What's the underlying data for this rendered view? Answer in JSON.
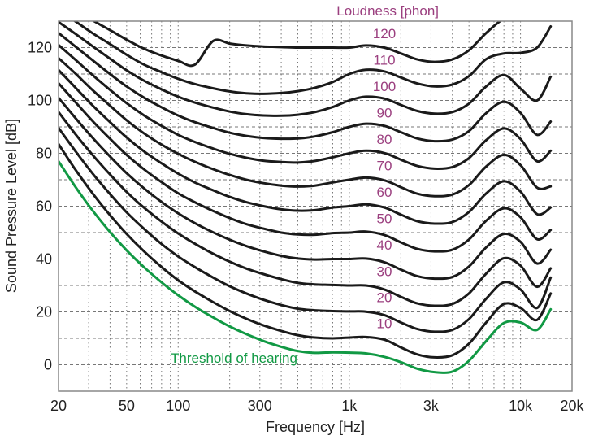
{
  "chart_data": {
    "type": "line",
    "title": "Loudness [phon]",
    "xlabel": "Frequency [Hz]",
    "ylabel": "Sound Pressure Level [dB]",
    "xscale": "log",
    "xlim": [
      20,
      20000
    ],
    "ylim": [
      -10,
      130
    ],
    "grid": true,
    "x_ticks": [
      {
        "value": 20,
        "label": "20"
      },
      {
        "value": 50,
        "label": "50"
      },
      {
        "value": 100,
        "label": "100"
      },
      {
        "value": 300,
        "label": "300"
      },
      {
        "value": 1000,
        "label": "1k"
      },
      {
        "value": 3000,
        "label": "3k"
      },
      {
        "value": 10000,
        "label": "10k"
      },
      {
        "value": 20000,
        "label": "20k"
      }
    ],
    "x_minor_grid": [
      30,
      40,
      50,
      60,
      70,
      80,
      90,
      100,
      200,
      300,
      400,
      500,
      600,
      700,
      800,
      900,
      1000,
      2000,
      3000,
      4000,
      5000,
      6000,
      7000,
      8000,
      9000,
      10000
    ],
    "y_ticks": [
      {
        "value": 0,
        "label": "0"
      },
      {
        "value": 20,
        "label": "20"
      },
      {
        "value": 40,
        "label": "40"
      },
      {
        "value": 60,
        "label": "60"
      },
      {
        "value": 80,
        "label": "80"
      },
      {
        "value": 100,
        "label": "100"
      },
      {
        "value": 120,
        "label": "120"
      }
    ],
    "y_grid": [
      0,
      10,
      20,
      30,
      40,
      50,
      60,
      70,
      80,
      90,
      100,
      110,
      120
    ],
    "x": [
      20,
      25,
      31.5,
      40,
      50,
      63,
      80,
      100,
      125,
      160,
      200,
      250,
      315,
      400,
      500,
      630,
      800,
      1000,
      1250,
      1600,
      2000,
      2500,
      3150,
      4000,
      5000,
      6300,
      8000,
      10000,
      12500,
      15000
    ],
    "series": [
      {
        "name": "Threshold of hearing",
        "label": "Threshold of hearing",
        "color": "#119944",
        "values": [
          77,
          67.5,
          58.5,
          50.2,
          43.3,
          37,
          31.2,
          26.3,
          22,
          17.9,
          14.5,
          11.6,
          9,
          6.8,
          5.2,
          4.5,
          4.7,
          4.6,
          4.3,
          3,
          1,
          -1.5,
          -2.8,
          -2.6,
          1.5,
          9,
          15.8,
          16,
          13.2,
          21
        ]
      },
      {
        "name": "10 phon",
        "label": "10",
        "color": "#1a1a1a",
        "values": [
          83.5,
          74,
          65,
          56.6,
          49.5,
          43,
          37,
          32,
          27.8,
          23.7,
          20.3,
          17.4,
          14.9,
          12.8,
          11.2,
          10.3,
          10,
          10.3,
          10.5,
          9.5,
          6.6,
          3.9,
          2.8,
          3.6,
          8,
          16,
          23,
          21.5,
          17,
          27
        ]
      },
      {
        "name": "20 phon",
        "label": "20",
        "color": "#1a1a1a",
        "values": [
          89.6,
          81,
          72.5,
          64.6,
          57.7,
          51.5,
          45.7,
          41,
          37,
          33,
          29.7,
          27,
          24.6,
          22.6,
          21.2,
          20.6,
          20.3,
          20.2,
          20.1,
          18.8,
          16,
          13.5,
          12.5,
          13.2,
          17.3,
          25,
          31.2,
          28.5,
          21.5,
          33
        ]
      },
      {
        "name": "30 phon",
        "label": "30",
        "color": "#1a1a1a",
        "values": [
          95.6,
          87.4,
          79.5,
          72,
          65.4,
          59.5,
          54.2,
          49.7,
          45.8,
          42,
          39,
          36.4,
          34.3,
          32.4,
          31,
          30.4,
          30.2,
          30,
          30,
          28.5,
          25.7,
          23.2,
          22.3,
          23,
          27,
          34.5,
          40.3,
          37.5,
          29.5,
          36.5
        ]
      },
      {
        "name": "40 phon",
        "label": "40",
        "color": "#1a1a1a",
        "values": [
          101,
          93.5,
          86,
          78.8,
          72.5,
          66.8,
          61.6,
          57.3,
          53.6,
          50.1,
          47.3,
          44.9,
          42.9,
          41.2,
          40.2,
          39.8,
          40,
          40,
          40.2,
          38.8,
          36,
          33.5,
          32.6,
          33.2,
          37.2,
          44.4,
          49.5,
          46.5,
          38.3,
          43.5
        ]
      },
      {
        "name": "50 phon",
        "label": "50",
        "color": "#1a1a1a",
        "values": [
          106.5,
          99.5,
          92.3,
          85.5,
          79.4,
          74,
          69.1,
          64.9,
          61.5,
          58.2,
          55.5,
          53.2,
          51.5,
          50,
          49.3,
          49.2,
          49.8,
          50,
          50.4,
          49.1,
          46.3,
          43.8,
          42.9,
          43.5,
          47.4,
          54.5,
          59.2,
          55.8,
          47.5,
          51
        ]
      },
      {
        "name": "60 phon",
        "label": "60",
        "color": "#1a1a1a",
        "values": [
          111.5,
          105,
          98.2,
          91.8,
          86,
          80.8,
          76.2,
          72.3,
          69,
          66,
          63.5,
          61.5,
          60,
          58.8,
          58.3,
          58.5,
          59.5,
          60,
          60.7,
          59.5,
          56.8,
          54.3,
          53.4,
          54,
          57.8,
          64.8,
          69.4,
          65.5,
          57,
          59.5
        ]
      },
      {
        "name": "70 phon",
        "label": "70",
        "color": "#1a1a1a",
        "values": [
          116,
          110.3,
          104,
          98,
          92.5,
          87.6,
          83.3,
          79.8,
          76.8,
          74,
          71.8,
          70,
          68.7,
          67.8,
          67.4,
          67.8,
          69,
          70,
          70.8,
          69.8,
          67.2,
          64.7,
          63.8,
          64.4,
          68,
          75,
          79.4,
          75.5,
          67,
          67.5
        ]
      },
      {
        "name": "80 phon",
        "label": "80",
        "color": "#1a1a1a",
        "values": [
          121,
          115.5,
          109.7,
          104,
          99,
          94.4,
          90.4,
          87,
          84.3,
          81.8,
          79.8,
          78.3,
          77.2,
          76.7,
          76.5,
          77.1,
          78.5,
          80,
          81,
          80.1,
          77.6,
          75.2,
          74.2,
          74.8,
          78.2,
          85,
          89.4,
          85.4,
          77,
          81
        ]
      },
      {
        "name": "90 phon",
        "label": "90",
        "color": "#1a1a1a",
        "values": [
          125.5,
          120.5,
          115.3,
          110,
          105.3,
          101.1,
          97.4,
          94.3,
          91.8,
          89.6,
          87.8,
          86.6,
          85.8,
          85.5,
          85.6,
          86.4,
          88,
          90,
          91.2,
          90.4,
          88,
          85.6,
          84.6,
          85.2,
          88.4,
          95.2,
          99.5,
          95.3,
          87,
          92
        ]
      },
      {
        "name": "100 phon",
        "label": "100",
        "color": "#1a1a1a",
        "values": [
          129.7,
          125.3,
          120.6,
          115.8,
          111.4,
          107.5,
          104.2,
          101.4,
          99.2,
          97.3,
          95.8,
          94.8,
          94.3,
          94.2,
          94.6,
          95.6,
          97.5,
          100,
          101.4,
          100.7,
          98.3,
          96,
          95,
          95.6,
          98.8,
          105.3,
          109.6,
          104.5,
          100,
          109
        ]
      },
      {
        "name": "110 phon",
        "label": "110",
        "color": "#1a1a1a",
        "values": [
          134,
          130,
          125.5,
          121.3,
          117.3,
          113.6,
          110.7,
          108.2,
          106.2,
          104.6,
          103.4,
          102.7,
          102.5,
          102.8,
          103.5,
          104.8,
          107,
          110,
          111.6,
          111,
          108.7,
          106.4,
          105.3,
          106,
          109.2,
          115.6,
          117.8,
          118,
          120,
          128
        ]
      },
      {
        "name": "120 phon",
        "label": "120",
        "color": "#1a1a1a",
        "values": [
          138,
          134.5,
          130.4,
          126.6,
          123,
          119.6,
          117,
          115,
          113.5,
          122.5,
          121.5,
          120.8,
          120.4,
          120.2,
          120,
          120,
          120,
          120,
          120.8,
          120,
          117.8,
          115.5,
          114.6,
          115.5,
          119,
          125.5,
          131,
          133,
          135,
          137
        ]
      }
    ],
    "annotations": [
      {
        "text": "Loudness [phon]",
        "role": "legend-title",
        "position": "top-center-right"
      },
      {
        "text": "Threshold of hearing",
        "role": "series-label",
        "series": "Threshold of hearing"
      }
    ]
  }
}
